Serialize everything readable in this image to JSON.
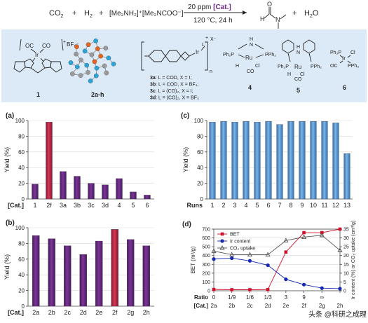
{
  "reaction": {
    "r1": "CO",
    "r1_sub": "2",
    "plus": "+",
    "r2": "H",
    "r2_sub": "2",
    "additive": "[Me₂NH₂]⁺[Me₂NCOO⁻]",
    "cond_top_prefix": "20 ppm ",
    "cond_top_cat": "[Cat.]",
    "cond_bottom": "120 °C, 24 h",
    "p2": "H",
    "p2_sub": "2",
    "p2_tail": "O",
    "dmf_h": "H",
    "dmf_o": "O",
    "dmf_n": "N"
  },
  "catalysts": {
    "c1_label": "1",
    "c1_oc": "OC",
    "c1_co": "CO",
    "c1_ir": "Ir",
    "c1_anion": "BF₄⁻",
    "c1_charge": "+",
    "c2_label": "2a-h",
    "c3_n_sub": "n",
    "c3_ir": "Ir",
    "c3_l": "L",
    "c3_charge": "+",
    "c3_x": "X⁻",
    "c3_legend": [
      {
        "id": "3a",
        "text": ": L = COD, X = I;"
      },
      {
        "id": "3b",
        "text": ": L = COD, X = BF₄;"
      },
      {
        "id": "3c",
        "text": ": L = (CO)₂, X = I;"
      },
      {
        "id": "3d",
        "text": ": L = (CO)₂, X = BF₄"
      }
    ],
    "c4_label": "4",
    "c4_h": "H",
    "c4_n": "N",
    "c4_ph2p": "Ph₂P",
    "c4_pph2": "PPh₂",
    "c4_ru": "Ru",
    "c4_cl": "Cl",
    "c4_co": "CO",
    "c5_label": "5",
    "c5_h": "H",
    "c5_n": "N",
    "c5_ph2p": "Ph₂P",
    "c5_pph2": "PPh₂",
    "c5_ru": "Ru",
    "c5_cl": "Cl",
    "c5_co": "CO",
    "c6_label": "6",
    "c6_ph3p": "Ph₃P",
    "c6_cl": "Cl",
    "c6_oc": "OC",
    "c6_pph3": "PPh₃",
    "c6_ir": "Ir"
  },
  "chart_data": [
    {
      "panel": "(a)",
      "type": "bar",
      "ylabel": "Yield (%)",
      "xlabel": "[Cat.]",
      "ylim": [
        0,
        100
      ],
      "yticks": [
        0,
        20,
        40,
        60,
        80,
        100
      ],
      "grid": true,
      "categories": [
        "1",
        "2f",
        "3a",
        "3b",
        "3c",
        "3d",
        "4",
        "5",
        "6"
      ],
      "values": [
        19,
        98,
        35,
        29,
        20,
        18,
        26,
        9,
        5
      ],
      "highlight": [
        1
      ]
    },
    {
      "panel": "(b)",
      "type": "bar",
      "ylabel": "Yield (%)",
      "xlabel": "[Cat.]",
      "ylim": [
        0,
        100
      ],
      "yticks": [
        0,
        20,
        40,
        60,
        80,
        100
      ],
      "grid": true,
      "categories": [
        "2a",
        "2b",
        "2c",
        "2d",
        "2e",
        "2f",
        "2g",
        "2h"
      ],
      "values": [
        90,
        86,
        77,
        66,
        83,
        98,
        85,
        77
      ],
      "highlight": [
        5
      ]
    },
    {
      "panel": "(c)",
      "type": "bar",
      "ylabel": "Yield (%)",
      "xlabel": "Runs",
      "ylim": [
        0,
        100
      ],
      "yticks": [
        0,
        20,
        40,
        60,
        80,
        100
      ],
      "grid": true,
      "categories": [
        "1",
        "2",
        "3",
        "4",
        "5",
        "6",
        "7",
        "8",
        "9",
        "10",
        "11",
        "12",
        "13"
      ],
      "values": [
        98,
        99,
        98,
        99,
        98,
        99,
        95,
        99,
        99,
        99,
        99,
        97,
        58
      ],
      "highlight": []
    },
    {
      "panel": "(d)",
      "type": "line",
      "ylabel_left": "BET (m²/g)",
      "ylabel_right": "Ir content (%) or CO₂ uptake (cm³/g)",
      "xlabel_top": "Ratio",
      "xlabel_bottom": "[Cat.]",
      "ylim_left": [
        0,
        700
      ],
      "yticks_left": [
        0,
        100,
        200,
        300,
        400,
        500,
        600,
        700
      ],
      "ylim_right": [
        0,
        35
      ],
      "yticks_right": [
        0,
        5,
        10,
        15,
        20,
        25,
        30,
        35
      ],
      "grid": true,
      "categories": [
        "2a",
        "2b",
        "2c",
        "2d",
        "2e",
        "2f",
        "2g",
        "2h"
      ],
      "ratios": [
        "0",
        "1/9",
        "1/6",
        "1/3",
        "3",
        "9",
        "∞",
        ""
      ],
      "legend_position": "top-left",
      "series": [
        {
          "name": "BET",
          "axis": "left",
          "color": "#d0112b",
          "marker": "square",
          "values": [
            15,
            12,
            12,
            14,
            440,
            660,
            660,
            700
          ]
        },
        {
          "name": "Ir content",
          "axis": "right",
          "color": "#1428b4",
          "marker": "circle",
          "values": [
            18.0,
            18.5,
            17.0,
            14.5,
            6.5,
            3.5,
            1.5,
            1.2
          ]
        },
        {
          "name": "CO₂ uptake",
          "axis": "right",
          "color": "#555555",
          "marker": "triangle",
          "values": [
            22.5,
            20.5,
            20.5,
            20.5,
            28.5,
            30.5,
            31.5,
            23.0
          ]
        }
      ]
    }
  ],
  "watermark": "头条 @科研之成理",
  "colors": {
    "panel_bg": "#dce9f6",
    "bar_purple": "#6b2a83",
    "bar_red": "#c3233f",
    "bar_blue": "#5b9bd5"
  }
}
